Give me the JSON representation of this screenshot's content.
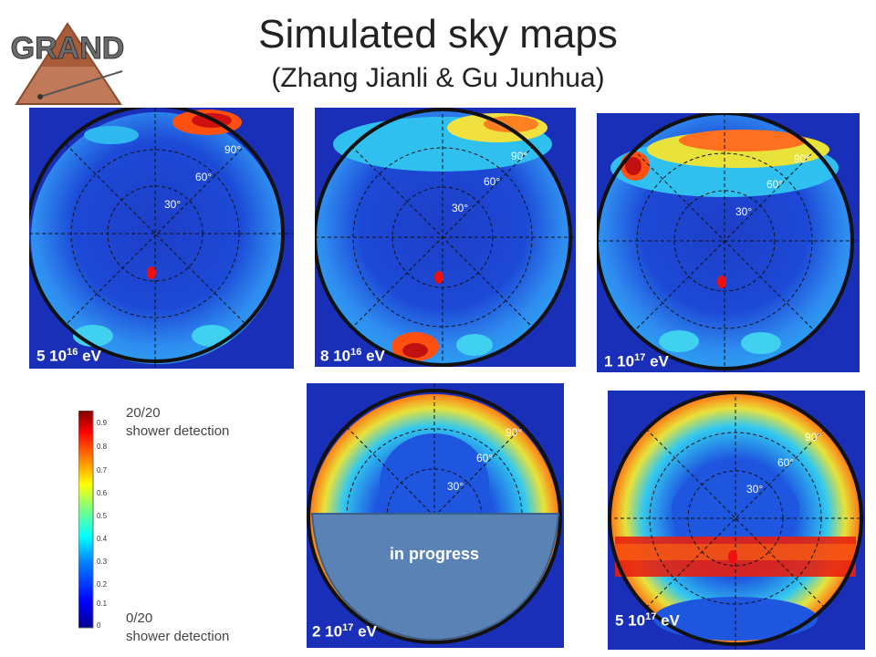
{
  "title": "Simulated sky maps",
  "subtitle": "(Zhang Jianli & Gu Junhua)",
  "logo": {
    "text": "GRAND",
    "icon": "grand-logo"
  },
  "maps": [
    {
      "energy_base": "5 10",
      "energy_exp": "16",
      "energy_unit": "eV",
      "rings": [
        "30°",
        "60°",
        "90°"
      ],
      "source_marker": "red-dot"
    },
    {
      "energy_base": "8 10",
      "energy_exp": "16",
      "energy_unit": "eV",
      "rings": [
        "30°",
        "60°",
        "90°"
      ],
      "source_marker": "red-dot"
    },
    {
      "energy_base": "1 10",
      "energy_exp": "17",
      "energy_unit": "eV",
      "rings": [
        "30°",
        "60°",
        "90°"
      ],
      "source_marker": "red-dot"
    },
    {
      "energy_base": "2 10",
      "energy_exp": "17",
      "energy_unit": "eV",
      "rings": [
        "30°",
        "60°",
        "90°"
      ],
      "overlay_label": "in progress"
    },
    {
      "energy_base": "5 10",
      "energy_exp": "17",
      "energy_unit": "eV",
      "rings": [
        "30°",
        "60°",
        "90°"
      ],
      "source_marker": "red-dot"
    }
  ],
  "colorbar": {
    "ticks": [
      "0.9",
      "0.8",
      "0.7",
      "0.6",
      "0.5",
      "0.4",
      "0.3",
      "0.2",
      "0.1",
      "0"
    ],
    "top_label_line1": "20/20",
    "top_label_line2": "shower detection",
    "bottom_label_line1": "0/20",
    "bottom_label_line2": "shower detection",
    "colors": [
      "#00008f",
      "#0000ff",
      "#0080ff",
      "#00ffff",
      "#80ff80",
      "#ffff00",
      "#ff8000",
      "#ff0000",
      "#800000"
    ]
  }
}
